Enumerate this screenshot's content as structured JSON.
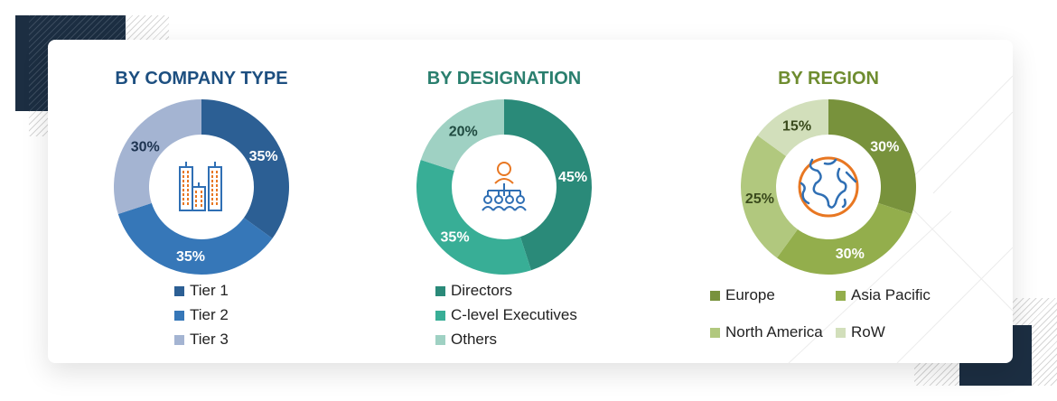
{
  "chart_data": [
    {
      "type": "pie",
      "variant": "donut",
      "title": "BY COMPANY TYPE",
      "title_color": "#1d4f80",
      "center_icon": "office-buildings-icon",
      "categories": [
        "Tier 1",
        "Tier 2",
        "Tier 3"
      ],
      "values": [
        35,
        35,
        30
      ],
      "labels": [
        "35%",
        "35%",
        "30%"
      ],
      "colors": [
        "#2c5f94",
        "#3677b8",
        "#a4b4d2"
      ],
      "label_colors": [
        "#ffffff",
        "#ffffff",
        "#1d3350"
      ],
      "legend_position": "bottom"
    },
    {
      "type": "pie",
      "variant": "donut",
      "title": "BY DESIGNATION",
      "title_color": "#2a7f6e",
      "center_icon": "org-hierarchy-icon",
      "categories": [
        "Directors",
        "C-level Executives",
        "Others"
      ],
      "values": [
        45,
        35,
        20
      ],
      "labels": [
        "45%",
        "35%",
        "20%"
      ],
      "colors": [
        "#2a8a79",
        "#38ae96",
        "#9fd1c3"
      ],
      "label_colors": [
        "#ffffff",
        "#ffffff",
        "#1f4a40"
      ],
      "legend_position": "bottom"
    },
    {
      "type": "pie",
      "variant": "donut",
      "title": "BY REGION",
      "title_color": "#6e8c2f",
      "center_icon": "globe-icon",
      "categories": [
        "Europe",
        "Asia Pacific",
        "North America",
        "RoW"
      ],
      "values": [
        30,
        30,
        25,
        15
      ],
      "labels": [
        "30%",
        "30%",
        "25%",
        "15%"
      ],
      "colors": [
        "#78923c",
        "#93ae4c",
        "#b1c87e",
        "#d2dfbb"
      ],
      "label_colors": [
        "#ffffff",
        "#ffffff",
        "#3a4a1c",
        "#3a4a1c"
      ],
      "legend_position": "bottom"
    }
  ]
}
